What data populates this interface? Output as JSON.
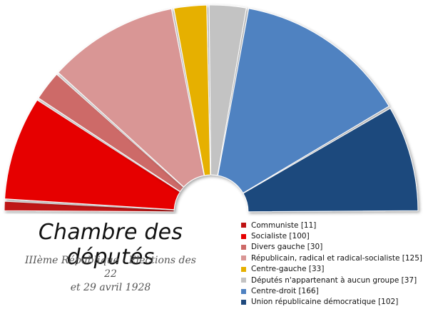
{
  "chart_data": {
    "type": "pie",
    "variant": "parliament-hemicycle",
    "title": "Chambre des députés",
    "subtitle_line1": "IIIème République - Elections des 22",
    "subtitle_line2": "et  29 avril 1928",
    "total_seats": 604,
    "legend_placement": "bottom-right",
    "series": [
      {
        "name": "Communiste",
        "seats": 11,
        "color": "#bf1212",
        "legend_label": "Communiste [11]"
      },
      {
        "name": "Socialiste",
        "seats": 100,
        "color": "#e60000",
        "legend_label": "Socialiste [100]"
      },
      {
        "name": "Divers gauche",
        "seats": 30,
        "color": "#cd6a68",
        "legend_label": "Divers gauche [30]"
      },
      {
        "name": "Républicain, radical et radical-socialiste",
        "seats": 125,
        "color": "#d99695",
        "legend_label": "Républicain, radical et radical-socialiste [125]"
      },
      {
        "name": "Centre-gauche",
        "seats": 33,
        "color": "#e6b000",
        "legend_label": "Centre-gauche [33]"
      },
      {
        "name": "Députés n'appartenant à aucun groupe",
        "seats": 37,
        "color": "#c3c3c3",
        "legend_label": "Députés n'appartenant à aucun groupe [37]"
      },
      {
        "name": "Centre-droit",
        "seats": 166,
        "color": "#4f82c1",
        "legend_label": "Centre-droit [166]"
      },
      {
        "name": "Union républicaine démocratique",
        "seats": 102,
        "color": "#1f497d",
        "legend_label": "Union républicaine démocratique [102]"
      }
    ]
  }
}
